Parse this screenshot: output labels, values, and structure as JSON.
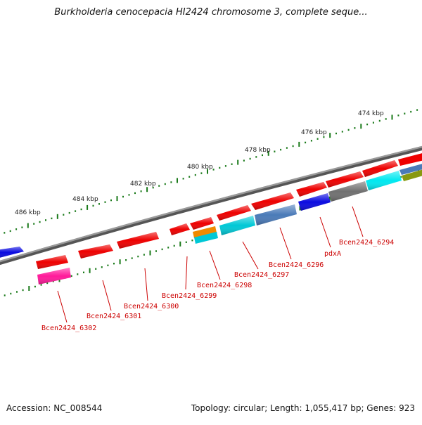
{
  "title": "Burkholderia cenocepacia HI2424 chromosome 3, complete seque...",
  "footer": {
    "accession": "Accession: NC_008544",
    "summary": "Topology: circular; Length: 1,055,417 bp; Genes: 923"
  },
  "colors": {
    "backbone": "#777777",
    "tick": "#1a7a1a",
    "label": "#cc0000",
    "gene_red": "#ee0000",
    "gene_magenta": "#ff1a9a",
    "gene_cyan": "#00c8d6",
    "gene_aqua": "#00e8f0",
    "gene_blue": "#0a0ae0",
    "gene_grey": "#707070",
    "gene_steel": "#4a7ab8",
    "gene_orange": "#f08a00",
    "gene_olive": "#889910"
  },
  "scale_labels": [
    "474 kbp",
    "476 kbp",
    "478 kbp",
    "480 kbp",
    "482 kbp",
    "484 kbp",
    "486 kbp"
  ],
  "gene_labels": [
    "Bcen2424_6294",
    "pdxA",
    "Bcen2424_6296",
    "Bcen2424_6297",
    "Bcen2424_6298",
    "Bcen2424_6299",
    "Bcen2424_6300",
    "Bcen2424_6301",
    "Bcen2424_6302"
  ]
}
